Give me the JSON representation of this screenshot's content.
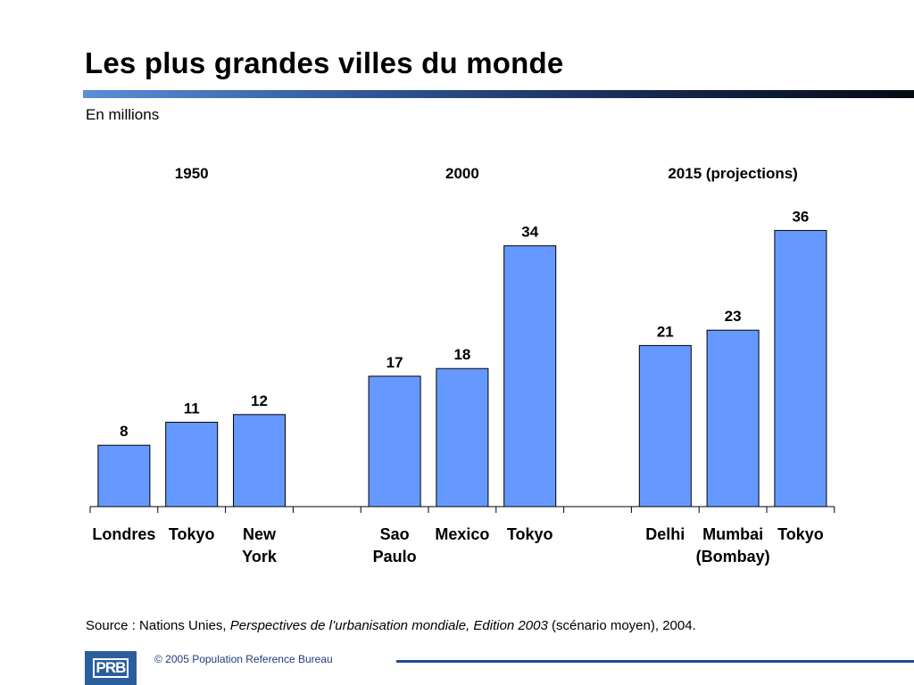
{
  "header": {
    "title": "Les plus grandes villes du monde",
    "subtitle": "En millions"
  },
  "chart_data": {
    "type": "bar",
    "bar_color": "#6699ff",
    "bar_border": "#000000",
    "ylim": [
      0,
      40
    ],
    "groups": [
      {
        "label": "1950",
        "bars": [
          {
            "category": [
              "Londres"
            ],
            "value": 8
          },
          {
            "category": [
              "Tokyo"
            ],
            "value": 11
          },
          {
            "category": [
              "New",
              "York"
            ],
            "value": 12
          }
        ]
      },
      {
        "label": "2000",
        "bars": [
          {
            "category": [
              "Sao",
              "Paulo"
            ],
            "value": 17
          },
          {
            "category": [
              "Mexico"
            ],
            "value": 18
          },
          {
            "category": [
              "Tokyo"
            ],
            "value": 34
          }
        ]
      },
      {
        "label": "2015 (projections)",
        "bars": [
          {
            "category": [
              "Delhi"
            ],
            "value": 21
          },
          {
            "category": [
              "Mumbai",
              "(Bombay)"
            ],
            "value": 23
          },
          {
            "category": [
              "Tokyo"
            ],
            "value": 36
          }
        ]
      }
    ]
  },
  "source": {
    "prefix": "Source : Nations Unies, ",
    "italic": "Perspectives de l’urbanisation mondiale, Edition 2003",
    "suffix": " (scénario moyen), 2004."
  },
  "footer": {
    "logo_text": "PRB",
    "copyright": "© 2005 Population Reference Bureau"
  }
}
